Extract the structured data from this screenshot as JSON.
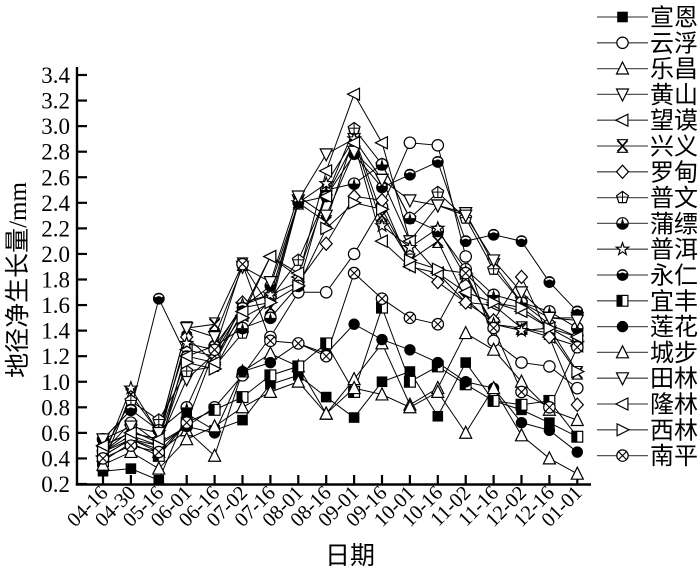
{
  "figure": {
    "type_label": "line chart",
    "background": "#ffffff",
    "ink_color": "#000000"
  },
  "chart_data": {
    "type": "line",
    "title": "",
    "xlabel": "日期",
    "ylabel": "地径净生长量/mm",
    "ylim": [
      0.2,
      3.4
    ],
    "ytick_step": 0.2,
    "ytick_labels": [
      "3.4",
      "3.2",
      "3.0",
      "2.8",
      "2.6",
      "2.4",
      "2.2",
      "2.0",
      "1.8",
      "1.6",
      "1.4",
      "1.2",
      "1.0",
      "0.8",
      "0.6",
      "0.4",
      "0.2"
    ],
    "grid": false,
    "legend_position": "right",
    "x_tick_rotation": -45,
    "categories": [
      "04-16",
      "04-30",
      "05-16",
      "06-01",
      "06-16",
      "07-02",
      "07-16",
      "08-01",
      "08-16",
      "09-01",
      "09-16",
      "10-01",
      "10-16",
      "11-02",
      "11-16",
      "12-02",
      "12-16",
      "01-01"
    ],
    "series": [
      {
        "name": "宣恩",
        "marker": "square-filled",
        "values": [
          0.3,
          0.32,
          0.23,
          0.75,
          0.62,
          0.7,
          0.98,
          1.05,
          0.88,
          0.72,
          1.0,
          1.08,
          0.73,
          1.15,
          0.85,
          0.78,
          0.68,
          0.57
        ]
      },
      {
        "name": "云浮",
        "marker": "circle-open",
        "values": [
          0.45,
          0.68,
          0.52,
          0.65,
          0.8,
          1.05,
          1.35,
          1.7,
          1.7,
          2.0,
          2.37,
          2.87,
          2.85,
          1.98,
          1.32,
          1.15,
          1.12,
          0.95
        ]
      },
      {
        "name": "乐昌",
        "marker": "triangle-up-open",
        "values": [
          0.42,
          0.55,
          0.45,
          0.62,
          0.42,
          1.08,
          1.22,
          1.12,
          0.75,
          1.02,
          1.3,
          0.82,
          0.95,
          1.38,
          1.25,
          1.0,
          0.78,
          0.7
        ]
      },
      {
        "name": "黄山",
        "marker": "triangle-down-open",
        "values": [
          0.45,
          0.62,
          0.52,
          1.02,
          1.22,
          1.58,
          1.62,
          2.42,
          2.78,
          2.9,
          2.58,
          2.1,
          2.38,
          2.32,
          1.92,
          1.62,
          1.5,
          1.5
        ]
      },
      {
        "name": "望谟",
        "marker": "triangle-left-open",
        "values": [
          0.42,
          0.55,
          0.47,
          1.25,
          1.2,
          1.52,
          1.98,
          1.82,
          2.65,
          3.25,
          2.87,
          2.1,
          1.85,
          1.62,
          1.6,
          1.42,
          1.35,
          1.28
        ]
      },
      {
        "name": "兴义",
        "marker": "star-x",
        "values": [
          0.35,
          0.9,
          0.6,
          1.42,
          1.45,
          1.92,
          1.58,
          2.4,
          2.25,
          2.92,
          2.3,
          1.95,
          2.1,
          1.65,
          1.45,
          1.42,
          1.38,
          1.07
        ]
      },
      {
        "name": "罗甸",
        "marker": "diamond-open",
        "values": [
          0.5,
          0.6,
          0.55,
          1.35,
          1.15,
          1.62,
          1.68,
          1.78,
          2.08,
          2.45,
          2.42,
          1.92,
          1.78,
          1.62,
          1.48,
          1.82,
          1.35,
          0.82
        ]
      },
      {
        "name": "普文",
        "marker": "pentagon-cross",
        "values": [
          0.45,
          0.85,
          0.7,
          1.08,
          1.12,
          1.38,
          1.65,
          1.95,
          2.45,
          2.98,
          2.7,
          2.28,
          2.48,
          2.28,
          1.88,
          1.62,
          1.45,
          1.35
        ]
      },
      {
        "name": "蒲缥",
        "marker": "circle-half",
        "values": [
          0.55,
          0.78,
          0.62,
          0.8,
          1.28,
          1.42,
          1.5,
          1.75,
          2.5,
          2.55,
          2.7,
          2.28,
          2.18,
          1.88,
          1.68,
          1.62,
          1.55,
          1.42
        ]
      },
      {
        "name": "普洱",
        "marker": "star-open",
        "values": [
          0.4,
          0.95,
          0.6,
          1.3,
          1.25,
          1.6,
          1.68,
          2.4,
          2.55,
          2.9,
          2.22,
          2.05,
          2.2,
          1.82,
          1.45,
          1.4,
          1.42,
          1.3
        ]
      },
      {
        "name": "永仁",
        "marker": "sphere",
        "values": [
          0.55,
          0.78,
          1.65,
          1.2,
          1.28,
          1.58,
          1.75,
          2.4,
          2.45,
          2.78,
          2.52,
          2.62,
          2.72,
          2.1,
          2.15,
          2.1,
          1.78,
          1.55
        ]
      },
      {
        "name": "宜丰",
        "marker": "square-half-left",
        "values": [
          0.38,
          0.52,
          0.42,
          0.68,
          0.78,
          0.88,
          1.05,
          1.12,
          1.3,
          0.92,
          1.58,
          1.0,
          1.12,
          0.98,
          0.85,
          0.82,
          0.85,
          0.57
        ]
      },
      {
        "name": "莲花",
        "marker": "circle-filled",
        "values": [
          0.45,
          0.58,
          0.5,
          0.65,
          0.6,
          1.08,
          1.15,
          1.3,
          1.22,
          1.45,
          1.33,
          1.25,
          1.15,
          1.0,
          0.95,
          0.68,
          0.62,
          0.45
        ]
      },
      {
        "name": "城步",
        "marker": "triangle-up-open",
        "values": [
          0.35,
          0.45,
          0.32,
          0.55,
          0.65,
          0.8,
          0.92,
          1.0,
          0.75,
          0.95,
          0.9,
          0.8,
          0.92,
          0.6,
          0.95,
          0.58,
          0.4,
          0.28
        ]
      },
      {
        "name": "田林",
        "marker": "triangle-down-open",
        "values": [
          0.55,
          0.65,
          0.6,
          1.42,
          1.35,
          1.9,
          1.78,
          2.45,
          2.3,
          2.8,
          2.58,
          2.42,
          2.38,
          2.3,
          1.95,
          1.7,
          1.5,
          1.48
        ]
      },
      {
        "name": "隆林",
        "marker": "triangle-left-open",
        "values": [
          0.5,
          0.6,
          0.55,
          1.2,
          1.15,
          1.55,
          1.98,
          1.85,
          2.45,
          2.87,
          2.1,
          1.9,
          1.85,
          1.7,
          1.62,
          1.55,
          1.42,
          1.35
        ]
      },
      {
        "name": "西林",
        "marker": "triangle-right-open",
        "values": [
          0.45,
          0.55,
          0.5,
          1.15,
          1.1,
          1.5,
          1.62,
          1.75,
          2.2,
          2.4,
          2.35,
          1.95,
          1.88,
          1.85,
          1.62,
          1.58,
          1.42,
          1.08
        ]
      },
      {
        "name": "南平",
        "marker": "circle-x",
        "values": [
          0.4,
          0.5,
          0.45,
          0.68,
          1.25,
          1.92,
          1.32,
          1.3,
          1.2,
          1.85,
          1.65,
          1.5,
          1.45,
          1.85,
          1.42,
          0.92,
          0.8,
          1.27
        ]
      }
    ]
  }
}
